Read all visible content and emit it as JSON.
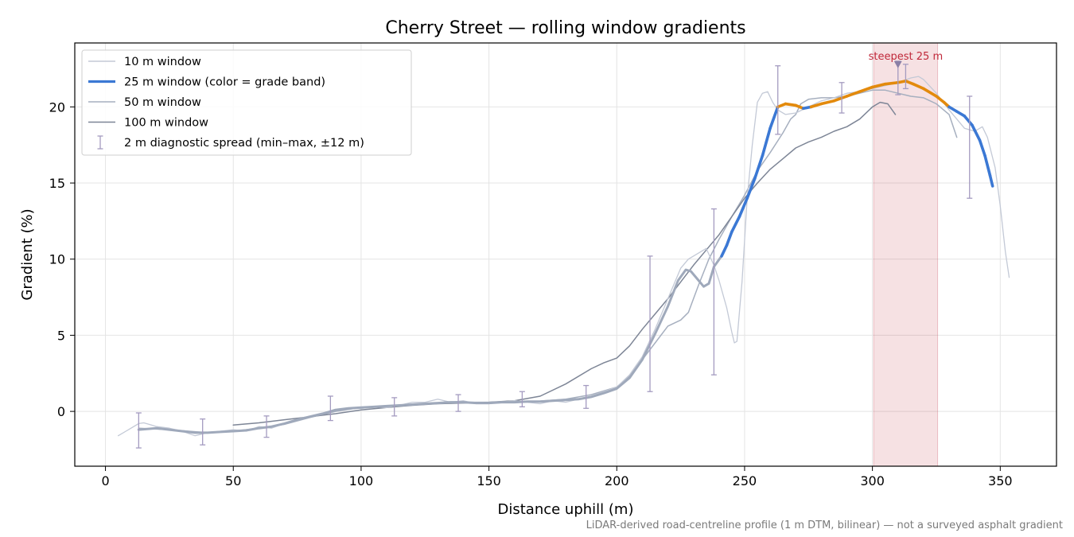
{
  "chart_data": {
    "type": "line",
    "title": "Cherry Street — rolling window gradients",
    "xlabel": "Distance uphill (m)",
    "ylabel": "Gradient (%)",
    "xlim": [
      -12,
      372
    ],
    "ylim": [
      -3.6,
      24.2
    ],
    "xticks": [
      0,
      50,
      100,
      150,
      200,
      250,
      300,
      350
    ],
    "yticks": [
      0,
      5,
      10,
      15,
      20
    ],
    "grid": true,
    "legend_position": "top-left",
    "footnote": "LiDAR-derived road-centreline profile (1 m DTM, bilinear) — not a surveyed asphalt gradient",
    "annotation": {
      "text": "steepest 25 m",
      "x": 310,
      "y": 22.8,
      "band": [
        300.5,
        325.5
      ],
      "color": "#c0283a"
    },
    "series": [
      {
        "name": "10 m window",
        "color": "#c3c9d6",
        "width": 1.3,
        "points": [
          [
            5,
            -1.6
          ],
          [
            8,
            -1.3
          ],
          [
            10,
            -1.1
          ],
          [
            13,
            -0.8
          ],
          [
            15,
            -0.75
          ],
          [
            18,
            -0.9
          ],
          [
            20,
            -1.0
          ],
          [
            25,
            -1.1
          ],
          [
            30,
            -1.3
          ],
          [
            35,
            -1.6
          ],
          [
            40,
            -1.4
          ],
          [
            45,
            -1.3
          ],
          [
            50,
            -1.2
          ],
          [
            55,
            -1.3
          ],
          [
            60,
            -1.0
          ],
          [
            65,
            -1.1
          ],
          [
            70,
            -0.8
          ],
          [
            75,
            -0.5
          ],
          [
            80,
            -0.3
          ],
          [
            85,
            -0.1
          ],
          [
            90,
            0.1
          ],
          [
            95,
            0.2
          ],
          [
            100,
            0.2
          ],
          [
            105,
            0.3
          ],
          [
            110,
            0.25
          ],
          [
            115,
            0.4
          ],
          [
            120,
            0.6
          ],
          [
            125,
            0.6
          ],
          [
            130,
            0.8
          ],
          [
            135,
            0.6
          ],
          [
            140,
            0.7
          ],
          [
            145,
            0.5
          ],
          [
            150,
            0.5
          ],
          [
            155,
            0.6
          ],
          [
            160,
            0.7
          ],
          [
            165,
            0.6
          ],
          [
            170,
            0.5
          ],
          [
            175,
            0.7
          ],
          [
            180,
            0.6
          ],
          [
            185,
            0.8
          ],
          [
            190,
            1.0
          ],
          [
            195,
            1.3
          ],
          [
            200,
            1.6
          ],
          [
            205,
            2.4
          ],
          [
            210,
            3.6
          ],
          [
            215,
            5.4
          ],
          [
            220,
            7.4
          ],
          [
            225,
            9.4
          ],
          [
            228,
            10.0
          ],
          [
            232,
            10.4
          ],
          [
            235,
            10.7
          ],
          [
            238,
            9.6
          ],
          [
            240,
            8.6
          ],
          [
            243,
            6.8
          ],
          [
            245,
            5.2
          ],
          [
            246,
            4.5
          ],
          [
            247,
            4.6
          ],
          [
            249,
            8.5
          ],
          [
            251,
            14.0
          ],
          [
            253,
            17.5
          ],
          [
            255,
            20.3
          ],
          [
            257,
            20.9
          ],
          [
            259,
            21.0
          ],
          [
            261,
            20.3
          ],
          [
            263,
            19.8
          ],
          [
            266,
            19.5
          ],
          [
            270,
            19.6
          ],
          [
            275,
            20.0
          ],
          [
            280,
            20.4
          ],
          [
            285,
            20.6
          ],
          [
            290,
            20.9
          ],
          [
            295,
            21.0
          ],
          [
            300,
            21.2
          ],
          [
            305,
            21.4
          ],
          [
            310,
            21.6
          ],
          [
            315,
            21.9
          ],
          [
            318,
            22.0
          ],
          [
            320,
            21.8
          ],
          [
            325,
            20.9
          ],
          [
            330,
            19.8
          ],
          [
            333,
            19.2
          ],
          [
            336,
            18.6
          ],
          [
            340,
            18.4
          ],
          [
            343,
            18.7
          ],
          [
            345,
            18.0
          ],
          [
            348,
            16.0
          ],
          [
            350,
            13.5
          ],
          [
            352,
            10.5
          ],
          [
            353.5,
            8.8
          ]
        ]
      },
      {
        "name": "25 m window (color = grade band)",
        "color": "#9fa9bb",
        "width": 3,
        "banded": true,
        "bands": [
          {
            "min": 10,
            "max": 20,
            "color": "#3b78d4"
          },
          {
            "min": 20,
            "max": 100,
            "color": "#e38a0c"
          }
        ],
        "points": [
          [
            13,
            -1.2
          ],
          [
            20,
            -1.1
          ],
          [
            25,
            -1.2
          ],
          [
            30,
            -1.3
          ],
          [
            35,
            -1.4
          ],
          [
            40,
            -1.4
          ],
          [
            45,
            -1.35
          ],
          [
            50,
            -1.3
          ],
          [
            55,
            -1.25
          ],
          [
            60,
            -1.1
          ],
          [
            65,
            -1.0
          ],
          [
            70,
            -0.8
          ],
          [
            75,
            -0.55
          ],
          [
            80,
            -0.35
          ],
          [
            85,
            -0.15
          ],
          [
            90,
            0.1
          ],
          [
            95,
            0.2
          ],
          [
            100,
            0.25
          ],
          [
            105,
            0.3
          ],
          [
            110,
            0.35
          ],
          [
            115,
            0.4
          ],
          [
            120,
            0.45
          ],
          [
            125,
            0.5
          ],
          [
            130,
            0.55
          ],
          [
            135,
            0.6
          ],
          [
            140,
            0.6
          ],
          [
            145,
            0.55
          ],
          [
            150,
            0.55
          ],
          [
            155,
            0.6
          ],
          [
            160,
            0.6
          ],
          [
            165,
            0.65
          ],
          [
            170,
            0.65
          ],
          [
            175,
            0.7
          ],
          [
            180,
            0.75
          ],
          [
            185,
            0.8
          ],
          [
            190,
            0.95
          ],
          [
            195,
            1.2
          ],
          [
            200,
            1.5
          ],
          [
            205,
            2.2
          ],
          [
            210,
            3.4
          ],
          [
            215,
            5.1
          ],
          [
            220,
            6.9
          ],
          [
            224,
            8.6
          ],
          [
            227,
            9.3
          ],
          [
            229,
            9.2
          ],
          [
            232,
            8.6
          ],
          [
            234,
            8.2
          ],
          [
            236,
            8.4
          ],
          [
            238,
            9.5
          ],
          [
            241,
            10.2
          ],
          [
            243,
            10.9
          ],
          [
            245,
            11.8
          ],
          [
            248,
            12.8
          ],
          [
            251,
            14.0
          ],
          [
            254,
            15.3
          ],
          [
            257,
            16.8
          ],
          [
            260,
            18.6
          ],
          [
            263,
            20.0
          ],
          [
            266,
            20.2
          ],
          [
            270,
            20.1
          ],
          [
            273,
            19.9
          ],
          [
            276,
            20.0
          ],
          [
            280,
            20.2
          ],
          [
            285,
            20.4
          ],
          [
            290,
            20.7
          ],
          [
            295,
            21.0
          ],
          [
            300,
            21.3
          ],
          [
            305,
            21.5
          ],
          [
            310,
            21.6
          ],
          [
            313,
            21.7
          ],
          [
            316,
            21.5
          ],
          [
            320,
            21.2
          ],
          [
            325,
            20.7
          ],
          [
            328,
            20.3
          ],
          [
            330,
            20.0
          ],
          [
            333,
            19.7
          ],
          [
            336,
            19.4
          ],
          [
            339,
            18.8
          ],
          [
            342,
            17.8
          ],
          [
            344,
            16.8
          ],
          [
            346,
            15.5
          ],
          [
            347,
            14.8
          ]
        ]
      },
      {
        "name": "50 m window",
        "color": "#a6afbf",
        "width": 1.5,
        "points": [
          [
            13,
            -1.1
          ],
          [
            25,
            -1.2
          ],
          [
            40,
            -1.4
          ],
          [
            50,
            -1.3
          ],
          [
            60,
            -1.1
          ],
          [
            70,
            -0.85
          ],
          [
            80,
            -0.4
          ],
          [
            90,
            0.0
          ],
          [
            100,
            0.25
          ],
          [
            110,
            0.35
          ],
          [
            120,
            0.45
          ],
          [
            130,
            0.55
          ],
          [
            140,
            0.6
          ],
          [
            150,
            0.6
          ],
          [
            160,
            0.62
          ],
          [
            170,
            0.68
          ],
          [
            180,
            0.8
          ],
          [
            190,
            1.1
          ],
          [
            200,
            1.6
          ],
          [
            205,
            2.3
          ],
          [
            210,
            3.4
          ],
          [
            215,
            4.5
          ],
          [
            220,
            5.6
          ],
          [
            225,
            6.0
          ],
          [
            228,
            6.5
          ],
          [
            232,
            8.3
          ],
          [
            236,
            10.0
          ],
          [
            240,
            11.3
          ],
          [
            245,
            12.8
          ],
          [
            250,
            14.2
          ],
          [
            255,
            15.8
          ],
          [
            260,
            17.0
          ],
          [
            265,
            18.3
          ],
          [
            268,
            19.2
          ],
          [
            270,
            19.5
          ],
          [
            272,
            20.2
          ],
          [
            275,
            20.5
          ],
          [
            280,
            20.6
          ],
          [
            285,
            20.6
          ],
          [
            290,
            20.7
          ],
          [
            295,
            20.9
          ],
          [
            300,
            21.1
          ],
          [
            305,
            21.1
          ],
          [
            310,
            20.9
          ],
          [
            315,
            20.7
          ],
          [
            320,
            20.6
          ],
          [
            325,
            20.2
          ],
          [
            330,
            19.5
          ],
          [
            333,
            18.0
          ]
        ]
      },
      {
        "name": "100 m window",
        "color": "#7d8596",
        "width": 1.5,
        "points": [
          [
            50,
            -0.9
          ],
          [
            60,
            -0.75
          ],
          [
            70,
            -0.55
          ],
          [
            80,
            -0.35
          ],
          [
            90,
            -0.15
          ],
          [
            100,
            0.1
          ],
          [
            110,
            0.25
          ],
          [
            120,
            0.4
          ],
          [
            130,
            0.5
          ],
          [
            140,
            0.55
          ],
          [
            150,
            0.6
          ],
          [
            160,
            0.7
          ],
          [
            170,
            1.0
          ],
          [
            180,
            1.8
          ],
          [
            190,
            2.8
          ],
          [
            195,
            3.2
          ],
          [
            200,
            3.5
          ],
          [
            205,
            4.3
          ],
          [
            210,
            5.4
          ],
          [
            215,
            6.4
          ],
          [
            220,
            7.4
          ],
          [
            225,
            8.5
          ],
          [
            230,
            9.6
          ],
          [
            235,
            10.6
          ],
          [
            240,
            11.6
          ],
          [
            245,
            12.8
          ],
          [
            250,
            14.0
          ],
          [
            255,
            15.0
          ],
          [
            260,
            15.9
          ],
          [
            265,
            16.6
          ],
          [
            270,
            17.3
          ],
          [
            275,
            17.7
          ],
          [
            280,
            18.0
          ],
          [
            285,
            18.4
          ],
          [
            290,
            18.7
          ],
          [
            295,
            19.2
          ],
          [
            300,
            20.0
          ],
          [
            303,
            20.3
          ],
          [
            306,
            20.2
          ],
          [
            309,
            19.5
          ]
        ]
      }
    ],
    "error_bars": {
      "name": "2 m diagnostic spread (min–max, ±12 m)",
      "color": "#a49bc0",
      "items": [
        {
          "x": 13,
          "low": -2.4,
          "high": -0.1
        },
        {
          "x": 38,
          "low": -2.2,
          "high": -0.5
        },
        {
          "x": 63,
          "low": -1.7,
          "high": -0.3
        },
        {
          "x": 88,
          "low": -0.6,
          "high": 1.0
        },
        {
          "x": 113,
          "low": -0.3,
          "high": 0.9
        },
        {
          "x": 138,
          "low": 0.0,
          "high": 1.1
        },
        {
          "x": 163,
          "low": 0.3,
          "high": 1.3
        },
        {
          "x": 188,
          "low": 0.2,
          "high": 1.7
        },
        {
          "x": 213,
          "low": 1.3,
          "high": 10.2
        },
        {
          "x": 238,
          "low": 2.4,
          "high": 13.3
        },
        {
          "x": 263,
          "low": 18.2,
          "high": 22.7
        },
        {
          "x": 288,
          "low": 19.6,
          "high": 21.6
        },
        {
          "x": 310,
          "low": 20.8,
          "high": 23.0
        },
        {
          "x": 313,
          "low": 21.2,
          "high": 22.8
        },
        {
          "x": 338,
          "low": 14.0,
          "high": 20.7
        }
      ]
    }
  }
}
